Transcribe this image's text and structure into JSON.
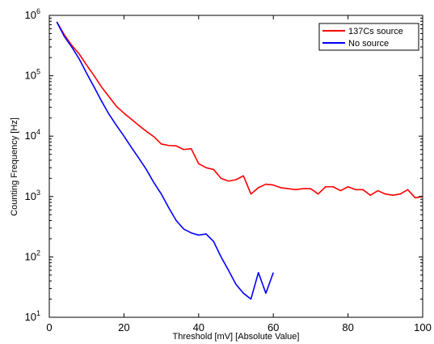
{
  "chart_data": {
    "type": "line",
    "title": "",
    "xlabel": "Threshold [mV] [Absolute Value]",
    "ylabel": "Counting Frequency [Hz]",
    "xlim": [
      0,
      100
    ],
    "ylim": [
      10,
      1000000
    ],
    "yscale": "log",
    "grid": false,
    "legend_position": "top-right",
    "x_ticks": [
      "0",
      "20",
      "40",
      "60",
      "80",
      "100"
    ],
    "y_ticks": [
      {
        "base": "10",
        "exp": "1"
      },
      {
        "base": "10",
        "exp": "2"
      },
      {
        "base": "10",
        "exp": "3"
      },
      {
        "base": "10",
        "exp": "4"
      },
      {
        "base": "10",
        "exp": "5"
      },
      {
        "base": "10",
        "exp": "6"
      }
    ],
    "series": [
      {
        "name": "137Cs source",
        "color": "#ff0000",
        "x": [
          2,
          4,
          6,
          8,
          10,
          12,
          14,
          16,
          18,
          20,
          22,
          24,
          26,
          28,
          30,
          32,
          34,
          36,
          38,
          40,
          42,
          44,
          46,
          48,
          50,
          52,
          54,
          56,
          58,
          60,
          62,
          64,
          66,
          68,
          70,
          72,
          74,
          76,
          78,
          80,
          82,
          84,
          86,
          88,
          90,
          92,
          94,
          96,
          98,
          100
        ],
        "y": [
          780000,
          480000,
          320000,
          230000,
          150000,
          100000,
          65000,
          45000,
          31000,
          24000,
          19000,
          15000,
          12000,
          9800,
          7400,
          7000,
          6900,
          6000,
          6200,
          3500,
          3000,
          2800,
          2000,
          1800,
          1900,
          2200,
          1100,
          1400,
          1600,
          1550,
          1400,
          1350,
          1300,
          1350,
          1350,
          1100,
          1450,
          1450,
          1250,
          1450,
          1300,
          1300,
          1050,
          1250,
          1100,
          1050,
          1100,
          1300,
          950,
          1000
        ]
      },
      {
        "name": "No source",
        "color": "#0000ff",
        "x": [
          2,
          4,
          6,
          8,
          10,
          12,
          14,
          16,
          18,
          20,
          22,
          24,
          26,
          28,
          30,
          32,
          34,
          36,
          38,
          40,
          42,
          44,
          46,
          48,
          50,
          52,
          54,
          56,
          58,
          60
        ],
        "y": [
          780000,
          450000,
          300000,
          190000,
          110000,
          65000,
          38000,
          23000,
          15000,
          10000,
          6500,
          4300,
          2800,
          1700,
          1100,
          650,
          400,
          290,
          250,
          230,
          240,
          180,
          100,
          60,
          35,
          25,
          20,
          55,
          25,
          55
        ]
      }
    ]
  }
}
